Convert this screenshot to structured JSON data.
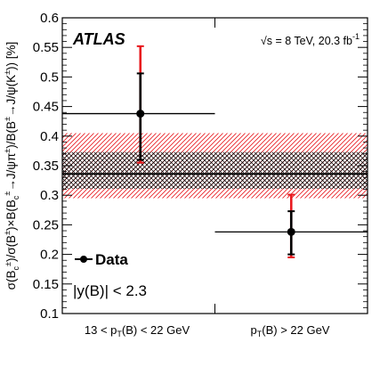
{
  "chart_data": {
    "type": "scatter",
    "ylabel": "σ(B_c^±)/σ(B^±)×B(B_c^± → J/ψπ^±)/B(B^± → J/ψ(K^±)) [%]",
    "ylim": [
      0.1,
      0.6
    ],
    "yticks": [
      "0.1",
      "0.15",
      "0.2",
      "0.25",
      "0.3",
      "0.35",
      "0.4",
      "0.45",
      "0.5",
      "0.55",
      "0.6"
    ],
    "categories": [
      "13 < p_T(B) < 22 GeV",
      "p_T(B) > 22 GeV"
    ],
    "series": [
      {
        "name": "Data",
        "values": [
          0.438,
          0.238
        ],
        "stat_err_low": [
          0.078,
          0.038
        ],
        "stat_err_high": [
          0.068,
          0.035
        ],
        "total_err_low": [
          0.083,
          0.043
        ],
        "total_err_high": [
          0.114,
          0.063
        ]
      }
    ],
    "average": {
      "value": 0.336,
      "stat_band": [
        0.311,
        0.373
      ],
      "total_band": [
        0.295,
        0.405
      ]
    },
    "grid": false
  },
  "labels": {
    "experiment": "ATLAS",
    "energy_pre": "√s = 8 TeV, 20.3 fb",
    "energy_sup": "-1",
    "legend": "Data",
    "rapidity": "|y(B)| < 2.3"
  },
  "colors": {
    "stat": "#000000",
    "total": "#e8191e",
    "stat_band": "#000000",
    "total_band": "#e8191e"
  }
}
